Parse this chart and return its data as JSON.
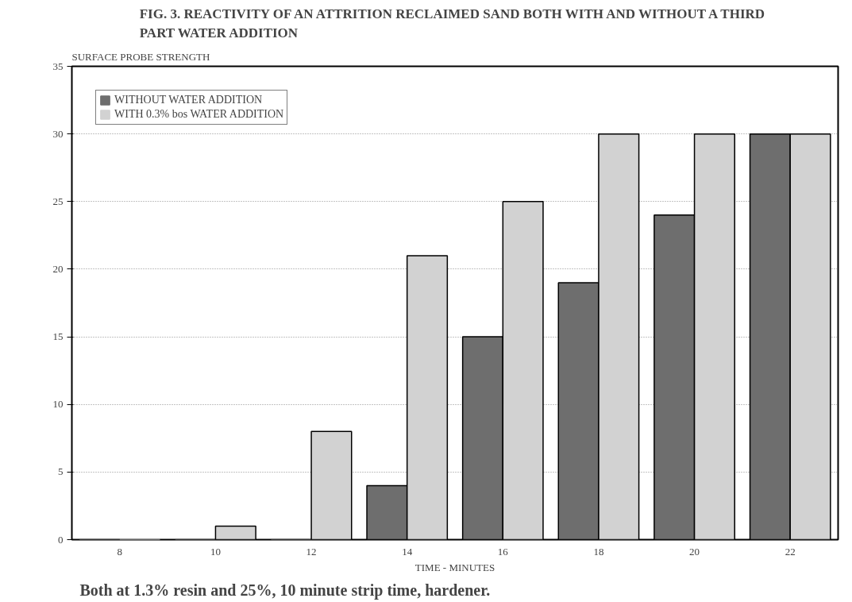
{
  "chart_data": {
    "type": "bar",
    "title": "FIG. 3. REACTIVITY OF AN ATTRITION RECLAIMED SAND BOTH WITH AND WITHOUT A THIRD PART WATER ADDITION",
    "ylabel": "SURFACE PROBE STRENGTH",
    "xlabel": "TIME - MINUTES",
    "categories": [
      "8",
      "10",
      "12",
      "14",
      "16",
      "18",
      "20",
      "22"
    ],
    "series": [
      {
        "name": "WITHOUT WATER ADDITION",
        "color": "#6e6e6e",
        "values": [
          0,
          0,
          0,
          4,
          15,
          19,
          24,
          30
        ]
      },
      {
        "name": "WITH 0.3% bos WATER ADDITION",
        "color": "#d2d2d2",
        "values": [
          0,
          1,
          8,
          21,
          25,
          30,
          30,
          30
        ]
      }
    ],
    "ylim": [
      0,
      35
    ],
    "yticks": [
      0,
      5,
      10,
      15,
      20,
      25,
      30,
      35
    ],
    "grid": "y",
    "legend": "top left",
    "annotations": [
      "Both at 1.3% resin and 25%, 10 minute strip time, hardener."
    ]
  }
}
